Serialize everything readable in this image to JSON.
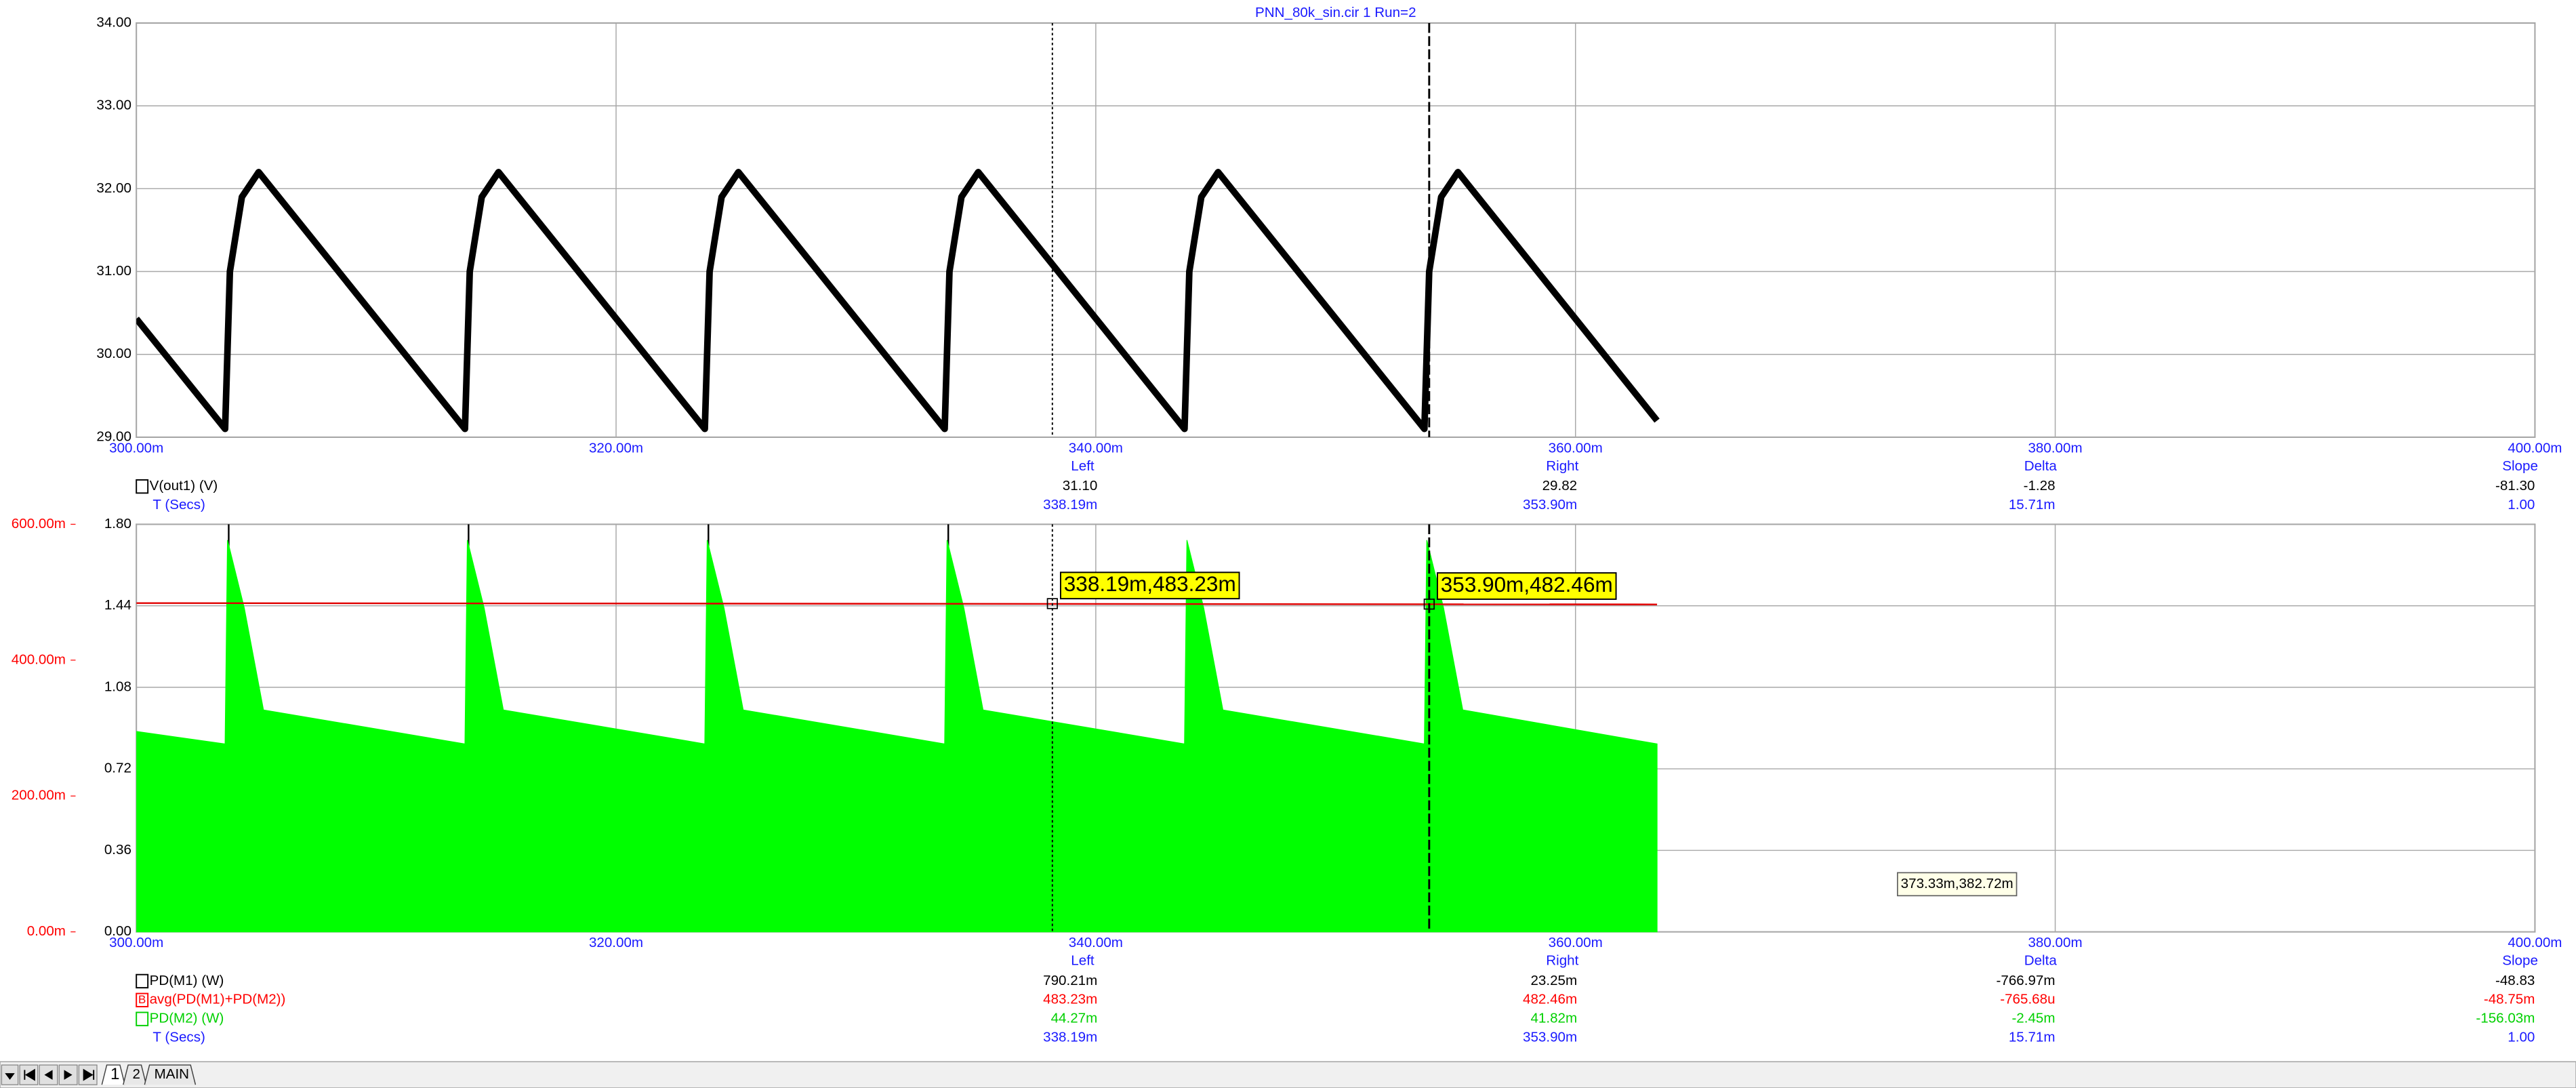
{
  "title": "PNN_80k_sin.cir 1 Run=2",
  "chart_data": [
    {
      "type": "line",
      "xlim": [
        0.3,
        0.4
      ],
      "xticks": [
        {
          "value": 0.3,
          "label": "300.00m"
        },
        {
          "value": 0.32,
          "label": "320.00m"
        },
        {
          "value": 0.34,
          "label": "340.00m"
        },
        {
          "value": 0.36,
          "label": "360.00m"
        },
        {
          "value": 0.38,
          "label": "380.00m"
        },
        {
          "value": 0.4,
          "label": "400.00m"
        }
      ],
      "ylim": [
        29,
        34
      ],
      "yticks": [
        {
          "value": 29,
          "label": "29.00"
        },
        {
          "value": 30,
          "label": "30.00"
        },
        {
          "value": 31,
          "label": "31.00"
        },
        {
          "value": 32,
          "label": "32.00"
        },
        {
          "value": 33,
          "label": "33.00"
        },
        {
          "value": 34,
          "label": "34.00"
        }
      ],
      "grid": true,
      "cursors": [
        {
          "value": 0.33819,
          "style": "dotted"
        },
        {
          "value": 0.3539,
          "style": "dashed"
        }
      ],
      "series": [
        {
          "color": "#000000",
          "style": "line",
          "x": [
            0.3,
            0.3037,
            0.3039,
            0.3044,
            0.3051,
            0.3137,
            0.3139,
            0.3144,
            0.3151,
            0.3237,
            0.3239,
            0.3244,
            0.3251,
            0.3337,
            0.3339,
            0.3344,
            0.3351,
            0.3437,
            0.3439,
            0.3444,
            0.3451,
            0.3537,
            0.3539,
            0.3544,
            0.3551,
            0.3634
          ],
          "values": [
            30.43,
            29.1,
            31.0,
            31.9,
            32.2,
            29.1,
            31.0,
            31.9,
            32.2,
            29.1,
            31.0,
            31.9,
            32.2,
            29.1,
            31.0,
            31.9,
            32.2,
            29.1,
            31.0,
            31.9,
            32.2,
            29.1,
            31.0,
            31.9,
            32.2,
            29.2
          ]
        }
      ]
    },
    {
      "type": "line",
      "xlim": [
        0.3,
        0.4
      ],
      "xticks": [
        {
          "value": 0.3,
          "label": "300.00m"
        },
        {
          "value": 0.32,
          "label": "320.00m"
        },
        {
          "value": 0.34,
          "label": "340.00m"
        },
        {
          "value": 0.36,
          "label": "360.00m"
        },
        {
          "value": 0.38,
          "label": "380.00m"
        },
        {
          "value": 0.4,
          "label": "400.00m"
        }
      ],
      "ylim": [
        0,
        1.8
      ],
      "yticks": [
        {
          "value": 0,
          "label": "0.00"
        },
        0.36,
        0.72,
        1.08,
        1.44,
        {
          "value": 1.8,
          "label": "1.80"
        }
      ],
      "y2lim": [
        0,
        0.6
      ],
      "y2ticks": [
        {
          "value": 0,
          "label": "0.00m"
        },
        {
          "value": 0.2,
          "label": "200.00m"
        },
        {
          "value": 0.4,
          "label": "400.00m"
        },
        {
          "value": 0.6,
          "label": "600.00m"
        }
      ],
      "y2color": "#ff0000",
      "grid": true,
      "cursors": [
        {
          "value": 0.33819,
          "style": "dotted"
        },
        {
          "value": 0.3539,
          "style": "dashed"
        }
      ],
      "series": [
        {
          "color": "#000000",
          "style": "line",
          "x": [
            0.30385,
            0.30385,
            0.30386,
            0.31385,
            0.31385,
            0.31386,
            0.32385,
            0.32385,
            0.32386,
            0.33385,
            0.33385
          ],
          "values": [
            0,
            1.8,
            null,
            0,
            1.8,
            null,
            0,
            1.8,
            null,
            0,
            1.8
          ]
        },
        {
          "color": "#00ff00",
          "style": "area",
          "x": [
            0.3,
            0.3037,
            0.3038,
            0.3045,
            0.3053,
            0.3137,
            0.3138,
            0.3145,
            0.3153,
            0.3237,
            0.3238,
            0.3245,
            0.3253,
            0.3337,
            0.3338,
            0.3345,
            0.3353,
            0.3437,
            0.3438,
            0.3445,
            0.3453,
            0.3537,
            0.3538,
            0.3545,
            0.3553,
            0.3634
          ],
          "values": [
            0.885,
            0.83,
            1.73,
            1.43,
            0.98,
            0.83,
            1.73,
            1.43,
            0.98,
            0.83,
            1.73,
            1.43,
            0.98,
            0.83,
            1.73,
            1.43,
            0.98,
            0.83,
            1.73,
            1.43,
            0.98,
            0.83,
            1.73,
            1.43,
            0.98,
            0.83
          ]
        },
        {
          "color": "#e00000",
          "style": "line",
          "axis": "y2",
          "x": [
            0.3,
            0.3634
          ],
          "values": [
            0.484,
            0.482
          ]
        }
      ],
      "annotations": [
        {
          "text": "338.19m,483.23m",
          "x": 0.33819,
          "y": 0.48323,
          "axis": "y2"
        },
        {
          "text": "353.90m,482.46m",
          "x": 0.3539,
          "y": 0.48246,
          "axis": "y2"
        }
      ]
    }
  ],
  "readouts": [
    {
      "columns": [
        "Left",
        "Right",
        "Delta",
        "Slope"
      ],
      "rows": [
        {
          "label": "V(out1) (V)",
          "color": "#000000",
          "box": true,
          "cells": [
            "31.10",
            "29.82",
            "-1.28",
            "-81.30"
          ]
        },
        {
          "label": "T (Secs)",
          "color": "#1a1aff",
          "box": false,
          "cells": [
            "338.19m",
            "353.90m",
            "15.71m",
            "1.00"
          ]
        }
      ]
    },
    {
      "columns": [
        "Left",
        "Right",
        "Delta",
        "Slope"
      ],
      "rows": [
        {
          "label": "PD(M1) (W)",
          "color": "#000000",
          "box": true,
          "cells": [
            "790.21m",
            "23.25m",
            "-766.97m",
            "-48.83"
          ]
        },
        {
          "label": "avg(PD(M1)+PD(M2))",
          "marker": "B",
          "color": "#ff0000",
          "box": true,
          "cells": [
            "483.23m",
            "482.46m",
            "-765.68u",
            "-48.75m"
          ]
        },
        {
          "label": "PD(M2) (W)",
          "color": "#00d000",
          "box": true,
          "cells": [
            "44.27m",
            "41.82m",
            "-2.45m",
            "-156.03m"
          ]
        },
        {
          "label": "T (Secs)",
          "color": "#1a1aff",
          "box": false,
          "cells": [
            "338.19m",
            "353.90m",
            "15.71m",
            "1.00"
          ]
        }
      ]
    }
  ],
  "tooltip": "373.33m,382.72m",
  "tabs": [
    "1",
    "2",
    "MAIN"
  ]
}
